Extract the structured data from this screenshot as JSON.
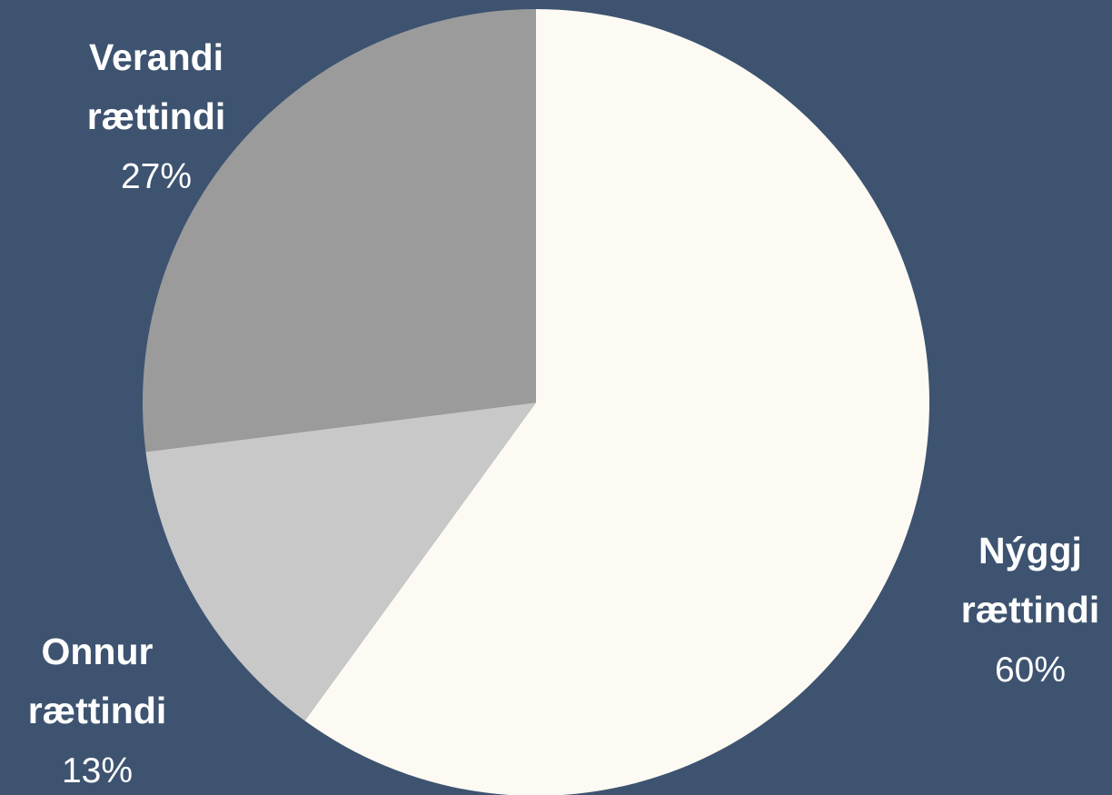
{
  "chart_data": {
    "type": "pie",
    "slices": [
      {
        "label_lines": [
          "Nýggj",
          "rættindi"
        ],
        "value": 60,
        "value_label": "60%",
        "color": "#fdfaf3"
      },
      {
        "label_lines": [
          "Onnur",
          "rættindi"
        ],
        "value": 13,
        "value_label": "13%",
        "color": "#c8c8c8"
      },
      {
        "label_lines": [
          "Verandi",
          "rættindi"
        ],
        "value": 27,
        "value_label": "27%",
        "color": "#9b9b9b"
      }
    ],
    "start_angle": "12 o'clock",
    "direction": "clockwise",
    "legend": "none",
    "background_color": "#3d5370",
    "label_color": "#ffffff"
  }
}
